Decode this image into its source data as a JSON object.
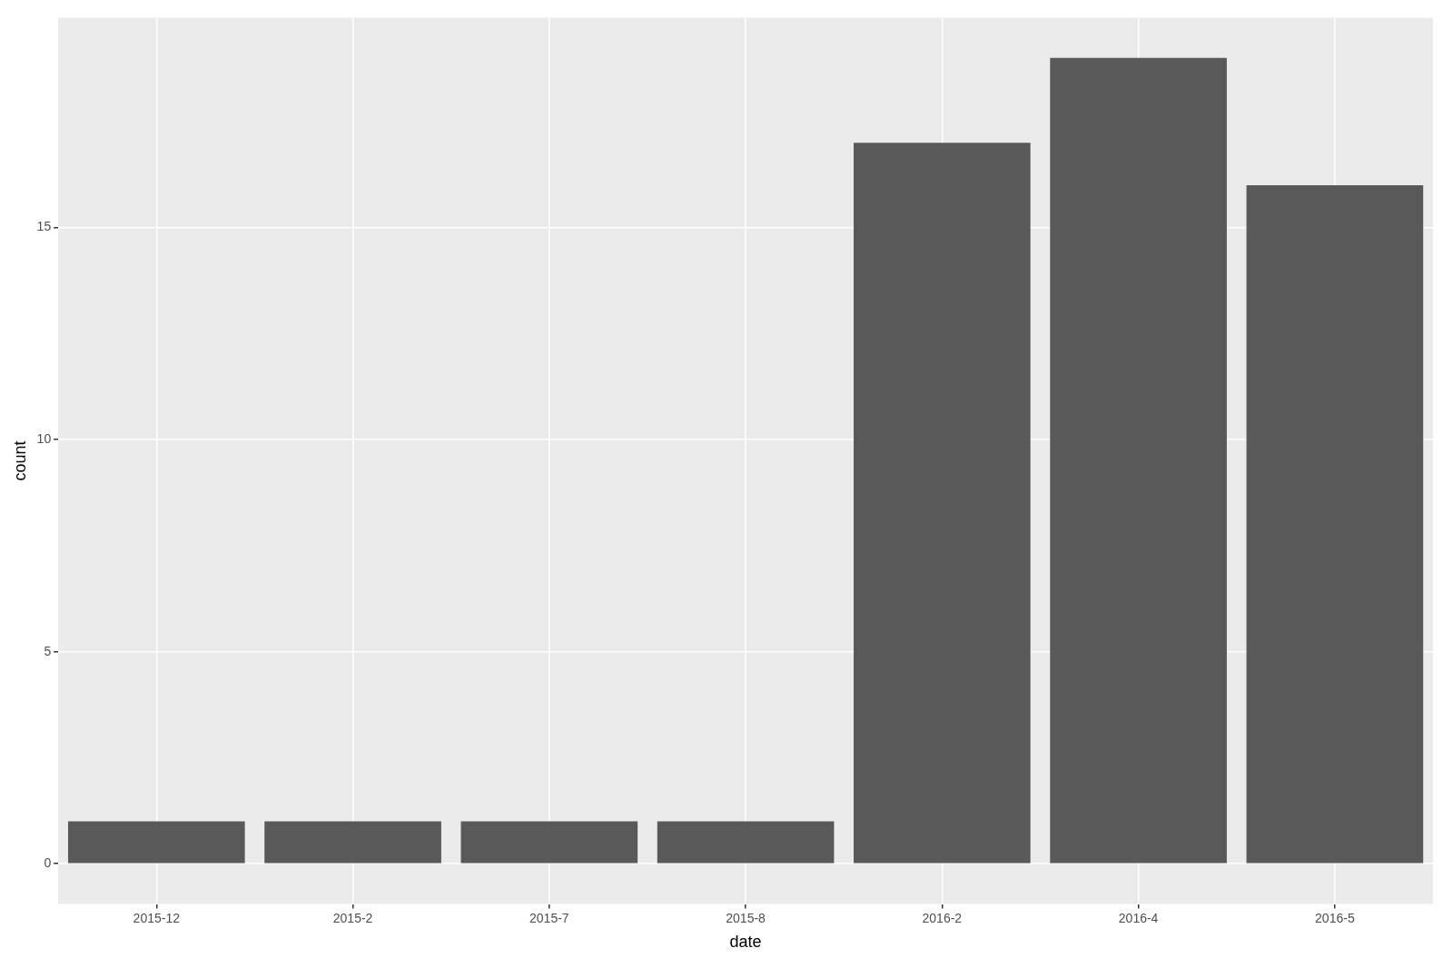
{
  "chart_data": {
    "type": "bar",
    "xlabel": "date",
    "ylabel": "count",
    "categories": [
      "2015-12",
      "2015-2",
      "2015-7",
      "2015-8",
      "2016-2",
      "2016-4",
      "2016-5"
    ],
    "values": [
      1,
      1,
      1,
      1,
      17,
      19,
      16
    ],
    "color": "#595959",
    "ylim": [
      -0.95,
      19.95
    ],
    "yticks": [
      0,
      5,
      10,
      15
    ],
    "grid": true,
    "legend": false
  }
}
